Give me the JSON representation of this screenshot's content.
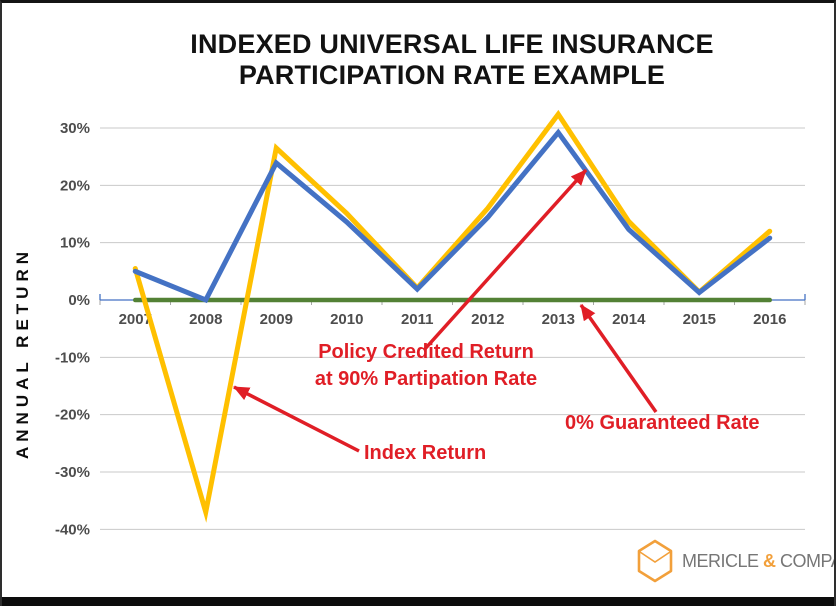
{
  "title": {
    "line1": "INDEXED UNIVERSAL LIFE INSURANCE",
    "line2": "PARTICIPATION RATE EXAMPLE"
  },
  "y_axis_label": "ANNUAL RETURN",
  "chart_data": {
    "type": "line",
    "title": "INDEXED UNIVERSAL LIFE INSURANCE PARTICIPATION RATE EXAMPLE",
    "xlabel": "",
    "ylabel": "ANNUAL RETURN",
    "categories": [
      2007,
      2008,
      2009,
      2010,
      2011,
      2012,
      2013,
      2014,
      2015,
      2016
    ],
    "series": [
      {
        "name": "Index Return",
        "color": "#FFC000",
        "values": [
          5.5,
          -37.0,
          26.5,
          15.1,
          2.1,
          16.0,
          32.4,
          13.7,
          1.4,
          12.0
        ]
      },
      {
        "name": "Policy Credited Return at 90% Partipation Rate",
        "color": "#4472C4",
        "values": [
          5.0,
          0.0,
          23.9,
          13.6,
          1.9,
          14.4,
          29.2,
          12.3,
          1.3,
          10.8
        ]
      },
      {
        "name": "0% Guaranteed Rate",
        "color": "#538135",
        "values": [
          0,
          0,
          0,
          0,
          0,
          0,
          0,
          0,
          0,
          0
        ]
      }
    ],
    "ylim": [
      -42,
      36
    ],
    "yticks": [
      30,
      20,
      10,
      0,
      -10,
      -20,
      -30,
      -40
    ],
    "ytick_suffix": "%",
    "grid": true,
    "legend_position": "none"
  },
  "annotations": {
    "policy": {
      "line1": "Policy Credited Return",
      "line2": "at 90% Partipation Rate"
    },
    "index": {
      "label": "Index Return"
    },
    "guaranteed": {
      "label": "0% Guaranteed Rate"
    }
  },
  "colors": {
    "index_line": "#FFC000",
    "credited_line": "#4472C4",
    "guaranteed_line": "#538135",
    "annotation_red": "#E01E26",
    "gridline": "#C9C9C9",
    "axis_line": "#4472C4",
    "axis_tick": "#A6A6A6",
    "tick_label": "#4d4d4d",
    "logo_orange": "#F2A03B",
    "logo_gray": "#767676"
  },
  "logo": {
    "word1": "MERICLE",
    "ampersand": "&",
    "word2": "COMPANY"
  }
}
